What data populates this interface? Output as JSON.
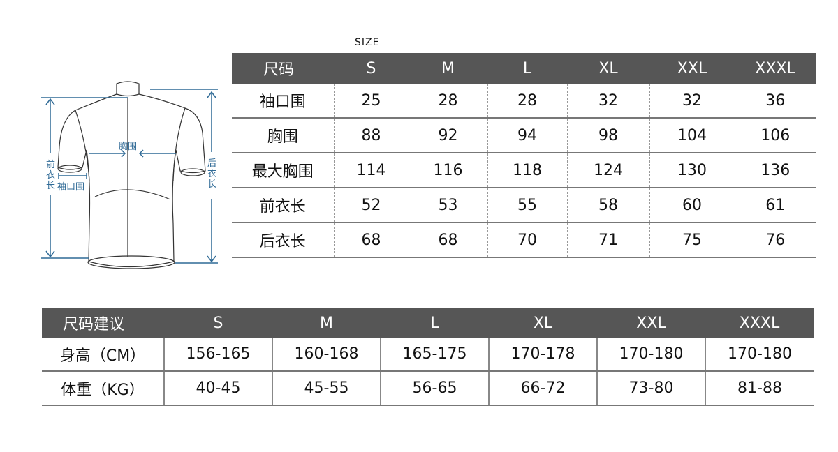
{
  "size_caption": "SIZE",
  "diagram": {
    "chest_label": "胸围",
    "cuff_label": "袖口围",
    "front_length_label": "前衣长",
    "back_length_label": "后衣长",
    "line_color": "#2f6a96"
  },
  "measure_table": {
    "header": [
      "尺码",
      "S",
      "M",
      "L",
      "XL",
      "XXL",
      "XXXL"
    ],
    "rows": [
      [
        "袖口围",
        "25",
        "28",
        "28",
        "32",
        "32",
        "36"
      ],
      [
        "胸围",
        "88",
        "92",
        "94",
        "98",
        "104",
        "106"
      ],
      [
        "最大胸围",
        "114",
        "116",
        "118",
        "124",
        "130",
        "136"
      ],
      [
        "前衣长",
        "52",
        "53",
        "55",
        "58",
        "60",
        "61"
      ],
      [
        "后衣长",
        "68",
        "68",
        "70",
        "71",
        "75",
        "76"
      ]
    ]
  },
  "recommend_table": {
    "header": [
      "尺码建议",
      "S",
      "M",
      "L",
      "XL",
      "XXL",
      "XXXL"
    ],
    "rows": [
      [
        "身高（CM）",
        "156-165",
        "160-168",
        "165-175",
        "170-178",
        "170-180",
        "170-180"
      ],
      [
        "体重（KG）",
        "40-45",
        "45-55",
        "56-65",
        "66-72",
        "73-80",
        "81-88"
      ]
    ]
  },
  "colors": {
    "header_bg": "#565656",
    "header_text": "#ffffff"
  }
}
